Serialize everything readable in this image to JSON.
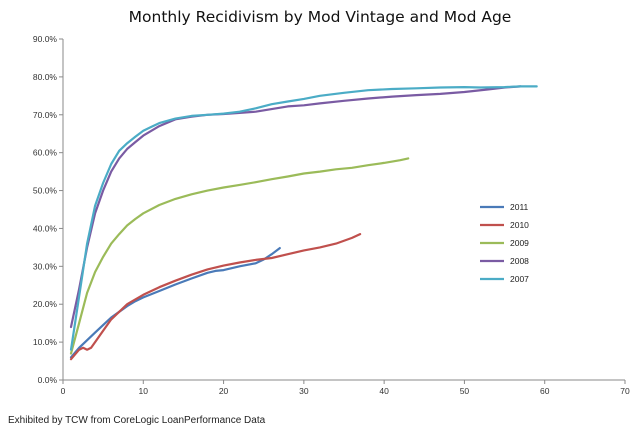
{
  "chart_data": {
    "type": "line",
    "title": "Monthly Recidivism by Mod Vintage and Mod Age",
    "xlabel": "",
    "ylabel": "",
    "xlim": [
      0,
      70
    ],
    "ylim": [
      0,
      0.9
    ],
    "x_ticks": [
      0,
      10,
      20,
      30,
      40,
      50,
      60,
      70
    ],
    "x_tick_labels": [
      "0",
      "10",
      "20",
      "30",
      "40",
      "50",
      "60",
      "70"
    ],
    "y_ticks": [
      0,
      0.1,
      0.2,
      0.3,
      0.4,
      0.5,
      0.6,
      0.7,
      0.8,
      0.9
    ],
    "y_tick_labels": [
      "0.0%",
      "10.0%",
      "20.0%",
      "30.0%",
      "40.0%",
      "50.0%",
      "60.0%",
      "70.0%",
      "80.0%",
      "90.0%"
    ],
    "grid": false,
    "legend_position": "right",
    "series": [
      {
        "name": "2011",
        "color": "#4a7ab8",
        "points": [
          [
            1,
            0.06
          ],
          [
            2,
            0.085
          ],
          [
            3,
            0.105
          ],
          [
            4,
            0.125
          ],
          [
            5,
            0.145
          ],
          [
            6,
            0.165
          ],
          [
            7,
            0.18
          ],
          [
            8,
            0.195
          ],
          [
            9,
            0.208
          ],
          [
            10,
            0.218
          ],
          [
            12,
            0.235
          ],
          [
            14,
            0.252
          ],
          [
            16,
            0.268
          ],
          [
            18,
            0.283
          ],
          [
            19,
            0.288
          ],
          [
            20,
            0.29
          ],
          [
            22,
            0.3
          ],
          [
            24,
            0.308
          ],
          [
            25,
            0.318
          ],
          [
            26,
            0.332
          ],
          [
            27,
            0.348
          ]
        ]
      },
      {
        "name": "2010",
        "color": "#c0504d",
        "points": [
          [
            1,
            0.055
          ],
          [
            2,
            0.08
          ],
          [
            2.5,
            0.085
          ],
          [
            3,
            0.08
          ],
          [
            3.5,
            0.085
          ],
          [
            4,
            0.1
          ],
          [
            5,
            0.13
          ],
          [
            6,
            0.16
          ],
          [
            7,
            0.18
          ],
          [
            8,
            0.2
          ],
          [
            10,
            0.225
          ],
          [
            12,
            0.245
          ],
          [
            14,
            0.262
          ],
          [
            16,
            0.278
          ],
          [
            18,
            0.292
          ],
          [
            20,
            0.302
          ],
          [
            22,
            0.31
          ],
          [
            24,
            0.317
          ],
          [
            26,
            0.322
          ],
          [
            28,
            0.332
          ],
          [
            30,
            0.342
          ],
          [
            32,
            0.35
          ],
          [
            34,
            0.36
          ],
          [
            36,
            0.375
          ],
          [
            37,
            0.385
          ]
        ]
      },
      {
        "name": "2009",
        "color": "#9bbb59",
        "points": [
          [
            1,
            0.07
          ],
          [
            2,
            0.15
          ],
          [
            3,
            0.23
          ],
          [
            4,
            0.285
          ],
          [
            5,
            0.325
          ],
          [
            6,
            0.36
          ],
          [
            7,
            0.385
          ],
          [
            8,
            0.408
          ],
          [
            9,
            0.425
          ],
          [
            10,
            0.44
          ],
          [
            12,
            0.462
          ],
          [
            14,
            0.478
          ],
          [
            16,
            0.49
          ],
          [
            18,
            0.5
          ],
          [
            20,
            0.508
          ],
          [
            22,
            0.515
          ],
          [
            24,
            0.522
          ],
          [
            26,
            0.53
          ],
          [
            28,
            0.537
          ],
          [
            30,
            0.545
          ],
          [
            32,
            0.55
          ],
          [
            34,
            0.556
          ],
          [
            36,
            0.56
          ],
          [
            38,
            0.567
          ],
          [
            40,
            0.573
          ],
          [
            42,
            0.58
          ],
          [
            43,
            0.585
          ]
        ]
      },
      {
        "name": "2008",
        "color": "#7a5ba3",
        "points": [
          [
            1,
            0.14
          ],
          [
            2,
            0.24
          ],
          [
            3,
            0.35
          ],
          [
            4,
            0.44
          ],
          [
            5,
            0.5
          ],
          [
            6,
            0.55
          ],
          [
            7,
            0.585
          ],
          [
            8,
            0.61
          ],
          [
            9,
            0.628
          ],
          [
            10,
            0.645
          ],
          [
            12,
            0.67
          ],
          [
            14,
            0.688
          ],
          [
            16,
            0.695
          ],
          [
            18,
            0.7
          ],
          [
            20,
            0.702
          ],
          [
            22,
            0.705
          ],
          [
            24,
            0.708
          ],
          [
            26,
            0.715
          ],
          [
            28,
            0.722
          ],
          [
            30,
            0.725
          ],
          [
            32,
            0.73
          ],
          [
            35,
            0.737
          ],
          [
            38,
            0.743
          ],
          [
            41,
            0.748
          ],
          [
            44,
            0.752
          ],
          [
            47,
            0.755
          ],
          [
            50,
            0.76
          ],
          [
            53,
            0.767
          ],
          [
            55,
            0.772
          ],
          [
            57,
            0.775
          ]
        ]
      },
      {
        "name": "2007",
        "color": "#4bacc6",
        "points": [
          [
            1,
            0.08
          ],
          [
            2,
            0.22
          ],
          [
            3,
            0.36
          ],
          [
            4,
            0.46
          ],
          [
            5,
            0.52
          ],
          [
            6,
            0.57
          ],
          [
            7,
            0.605
          ],
          [
            8,
            0.625
          ],
          [
            9,
            0.642
          ],
          [
            10,
            0.658
          ],
          [
            11,
            0.668
          ],
          [
            12,
            0.678
          ],
          [
            14,
            0.69
          ],
          [
            16,
            0.697
          ],
          [
            18,
            0.7
          ],
          [
            20,
            0.703
          ],
          [
            22,
            0.708
          ],
          [
            24,
            0.717
          ],
          [
            26,
            0.728
          ],
          [
            28,
            0.735
          ],
          [
            30,
            0.742
          ],
          [
            32,
            0.75
          ],
          [
            35,
            0.758
          ],
          [
            38,
            0.765
          ],
          [
            41,
            0.768
          ],
          [
            44,
            0.77
          ],
          [
            47,
            0.772
          ],
          [
            50,
            0.773
          ],
          [
            52,
            0.772
          ],
          [
            55,
            0.773
          ],
          [
            57,
            0.775
          ],
          [
            59,
            0.775
          ]
        ]
      }
    ]
  },
  "footer": {
    "source": "Exhibited by TCW from CoreLogic LoanPerformance Data"
  }
}
